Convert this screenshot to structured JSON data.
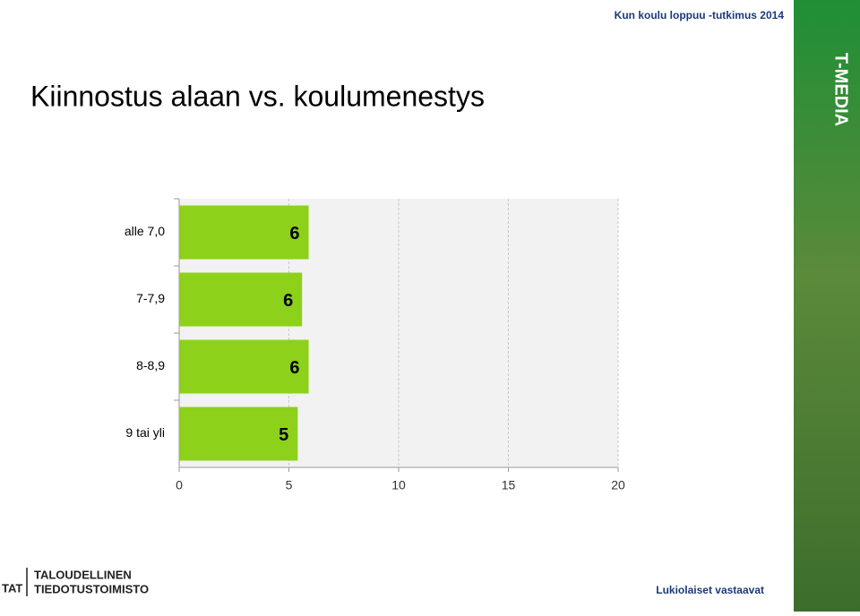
{
  "header": "Kun koulu loppuu -tutkimus 2014",
  "brand": "T-MEDIA",
  "logo": {
    "short": "TAT",
    "line1": "TALOUDELLINEN",
    "line2": "TIEDOTUSTOIMISTO"
  },
  "footer": "Lukiolaiset vastaavat",
  "chart_data": {
    "type": "hbar",
    "title": "Kiinnostus alaan vs. koulumenestys",
    "categories": [
      "alle 7,0",
      "7-7,9",
      "8-8,9",
      "9 tai yli"
    ],
    "values": [
      5.9,
      5.6,
      5.9,
      5.4
    ],
    "value_labels": [
      "6",
      "6",
      "6",
      "5"
    ],
    "color": "#8dd11b",
    "xlim": [
      0,
      20
    ],
    "xticks": [
      0,
      5,
      10,
      15,
      20
    ],
    "grid": true
  }
}
